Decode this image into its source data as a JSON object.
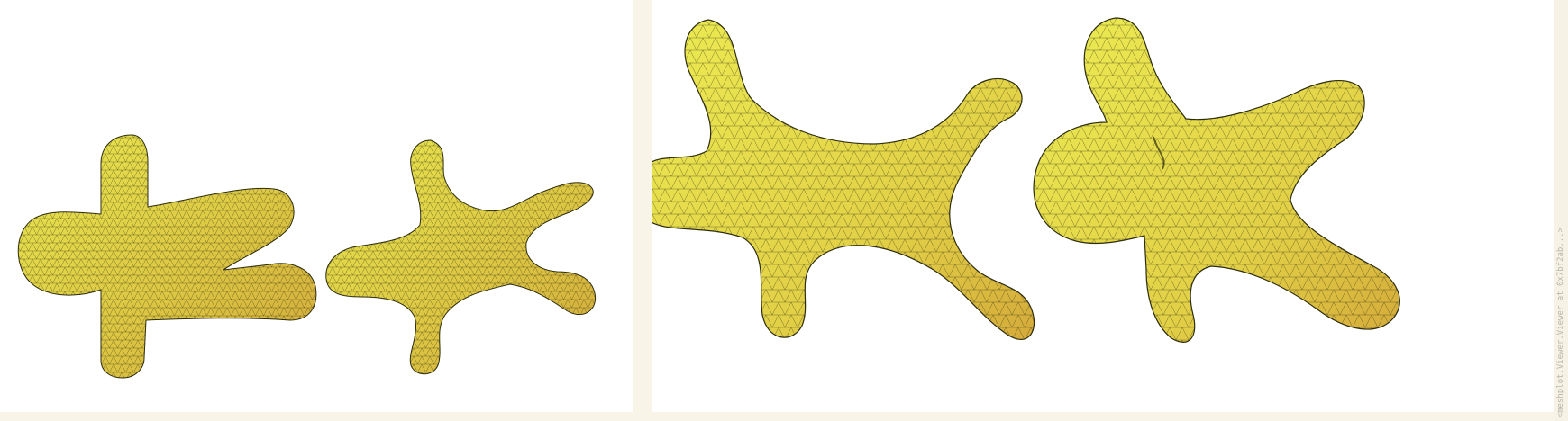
{
  "viewer": {
    "watermark": "<meshplot.Viewer.Viewer at 0x7bf2ab...>"
  },
  "panels": [
    {
      "name": "left",
      "meshes": [
        "gingerbread-original-mesh",
        "gingerbread-deformed-mesh"
      ]
    },
    {
      "name": "right",
      "meshes": [
        "deformed-mesh-closeup",
        "gingerbread-closeup"
      ]
    }
  ],
  "colors": {
    "mesh_fill_light": "#e7e64d",
    "mesh_fill_dark": "#d1ab3a",
    "wire": "#3a3a1a",
    "background": "#ffffff",
    "frame": "#f8f5e8"
  }
}
